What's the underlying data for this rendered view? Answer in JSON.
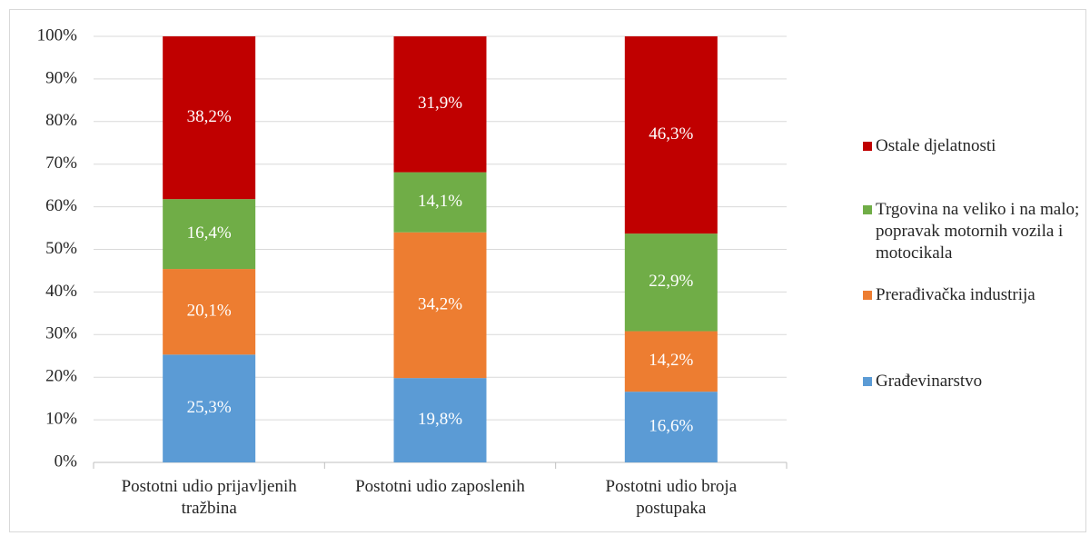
{
  "chart_data": {
    "type": "stacked_bar",
    "categories": [
      "Postotni udio prijavljenih tražbina",
      "Postotni udio zaposlenih",
      "Postotni udio broja postupaka"
    ],
    "series": [
      {
        "name": "Građevinarstvo",
        "color": "#5b9bd5",
        "values": [
          25.3,
          19.8,
          16.6
        ],
        "value_labels": [
          "25,3%",
          "19,8%",
          "16,6%"
        ]
      },
      {
        "name": "Prerađivačka industrija",
        "color": "#ed7d31",
        "values": [
          20.1,
          34.2,
          14.2
        ],
        "value_labels": [
          "20,1%",
          "34,2%",
          "14,2%"
        ]
      },
      {
        "name": "Trgovina na veliko i na malo; popravak motornih vozila i motocikala",
        "color": "#70ad47",
        "values": [
          16.4,
          14.1,
          22.9
        ],
        "value_labels": [
          "16,4%",
          "14,1%",
          "22,9%"
        ]
      },
      {
        "name": "Ostale djelatnosti",
        "color": "#c00000",
        "values": [
          38.2,
          31.9,
          46.3
        ],
        "value_labels": [
          "38,2%",
          "31,9%",
          "46,3%"
        ]
      }
    ],
    "ylim": [
      0,
      100
    ],
    "yticks": [
      {
        "value": 0,
        "label": "0%"
      },
      {
        "value": 10,
        "label": "10%"
      },
      {
        "value": 20,
        "label": "20%"
      },
      {
        "value": 30,
        "label": "30%"
      },
      {
        "value": 40,
        "label": "40%"
      },
      {
        "value": 50,
        "label": "50%"
      },
      {
        "value": 60,
        "label": "60%"
      },
      {
        "value": 70,
        "label": "70%"
      },
      {
        "value": 80,
        "label": "80%"
      },
      {
        "value": 90,
        "label": "90%"
      },
      {
        "value": 100,
        "label": "100%"
      }
    ],
    "grid": true,
    "legend": "right"
  }
}
